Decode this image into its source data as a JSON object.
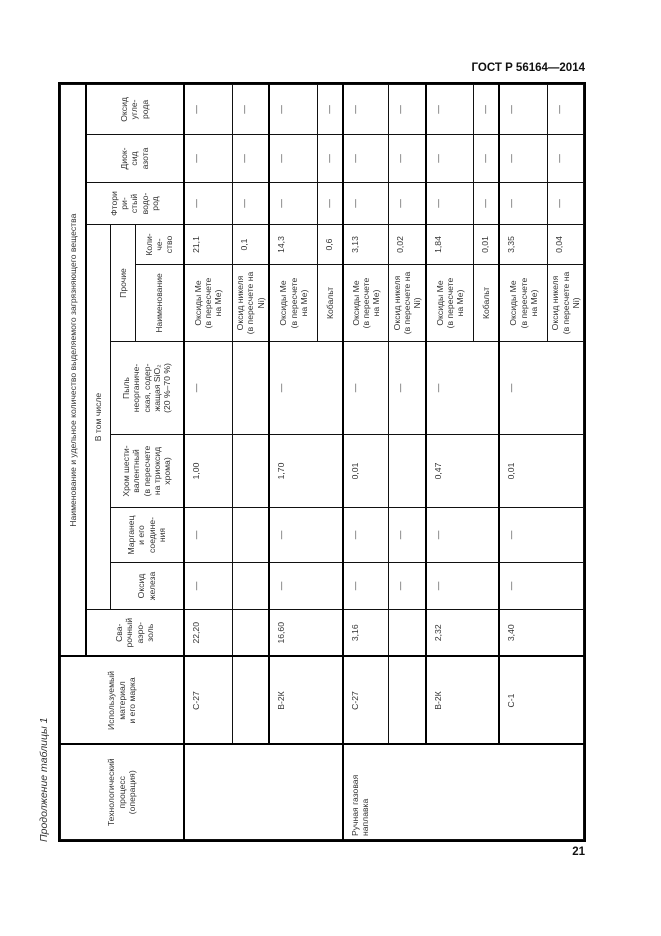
{
  "header": {
    "standard": "ГОСТ Р 56164—2014"
  },
  "caption": "Продолжение таблицы 1",
  "page_number": "21",
  "table": {
    "headers": {
      "process": "Технологический\nпроцесс\n(операция)",
      "material": "Используемый\nматериал\nи его марка",
      "title": "Наименование и удельное количество выделяемого загрязняющего вещества",
      "aerosol": "Сва-\nрочный\nаэро-\nзоль",
      "including": "В том числе",
      "iron_oxide": "Оксид\nжелеза",
      "manganese": "Марганец\nи его\nсоедине-\nния",
      "chromium": "Хром шести-\nвалентный\n(в пересчете\nна триоксид\nхрома)",
      "dust": "Пыль\nнеорганиче-\nская, содер-\nжащая SiO₂\n(20 %–70 %)",
      "other": "Прочие",
      "other_name": "Наименование",
      "other_qty": "Коли-\nче-\nство",
      "hf": "Фтори\nри-\nстый\nводо-\nрод",
      "no2": "Диок-\nсид\nазота",
      "co": "Оксид\nугле-\nрода"
    },
    "groups": [
      {
        "process": "",
        "rows": [
          {
            "material": "С-27",
            "aerosol": "22,20",
            "iron_oxide": "—",
            "manganese": "—",
            "chromium": "1,00",
            "dust": "—",
            "other_name": "Оксиды Ме\n(в пересчете\nна Ме)",
            "other_qty": "21,1",
            "hf": "—",
            "no2": "—",
            "co": "—"
          },
          {
            "material": "",
            "aerosol": "",
            "iron_oxide": "",
            "manganese": "",
            "chromium": "",
            "dust": "",
            "other_name": "Оксид никеля\n(в пересчете на Ni)",
            "other_qty": "0,1",
            "hf": "—",
            "no2": "—",
            "co": "—"
          },
          {
            "material": "В-2К",
            "aerosol": "16,60",
            "iron_oxide": "—",
            "manganese": "—",
            "chromium": "1,70",
            "dust": "—",
            "other_name": "Оксиды Ме\n(в пересчете\nна Ме)",
            "other_qty": "14,3",
            "hf": "—",
            "no2": "—",
            "co": "—",
            "span": 2
          },
          {
            "other_name": "Кобальт",
            "other_qty": "0,6",
            "hf": "—",
            "no2": "—",
            "co": "—"
          }
        ]
      },
      {
        "process": "Ручная газовая\nнаплавка",
        "rows": [
          {
            "material": "С-27",
            "aerosol": "3,16",
            "iron_oxide": "—",
            "manganese": "—",
            "chromium": "0,01",
            "dust": "—",
            "other_name": "Оксиды Ме\n(в пересчете\nна Ме)",
            "other_qty": "3,13",
            "hf": "—",
            "no2": "—",
            "co": "—"
          },
          {
            "material": "",
            "aerosol": "",
            "iron_oxide": "—",
            "manganese": "—",
            "chromium": "",
            "dust": "—",
            "other_name": "Оксид никеля\n(в пересчете на Ni)",
            "other_qty": "0,02",
            "hf": "—",
            "no2": "—",
            "co": "—"
          },
          {
            "material": "В-2К",
            "aerosol": "2,32",
            "iron_oxide": "—",
            "manganese": "—",
            "chromium": "0,47",
            "dust": "—",
            "other_name": "Оксиды Ме\n(в пересчете\nна Ме)",
            "other_qty": "1,84",
            "hf": "—",
            "no2": "—",
            "co": "—",
            "span": 2
          },
          {
            "other_name": "Кобальт",
            "other_qty": "0,01",
            "hf": "—",
            "no2": "—",
            "co": "—"
          },
          {
            "material": "С-1",
            "aerosol": "3,40",
            "iron_oxide": "—",
            "manganese": "—",
            "chromium": "0,01",
            "dust": "—",
            "other_name": "Оксиды Ме\n(в пересчете\nна Ме)",
            "other_qty": "3,35",
            "hf": "—",
            "no2": "—",
            "co": "—",
            "span": 2
          },
          {
            "other_name": "Оксид никеля\n(в пересчете на Ni)",
            "other_qty": "0,04",
            "hf": "—",
            "no2": "—",
            "co": "—"
          }
        ]
      }
    ]
  }
}
